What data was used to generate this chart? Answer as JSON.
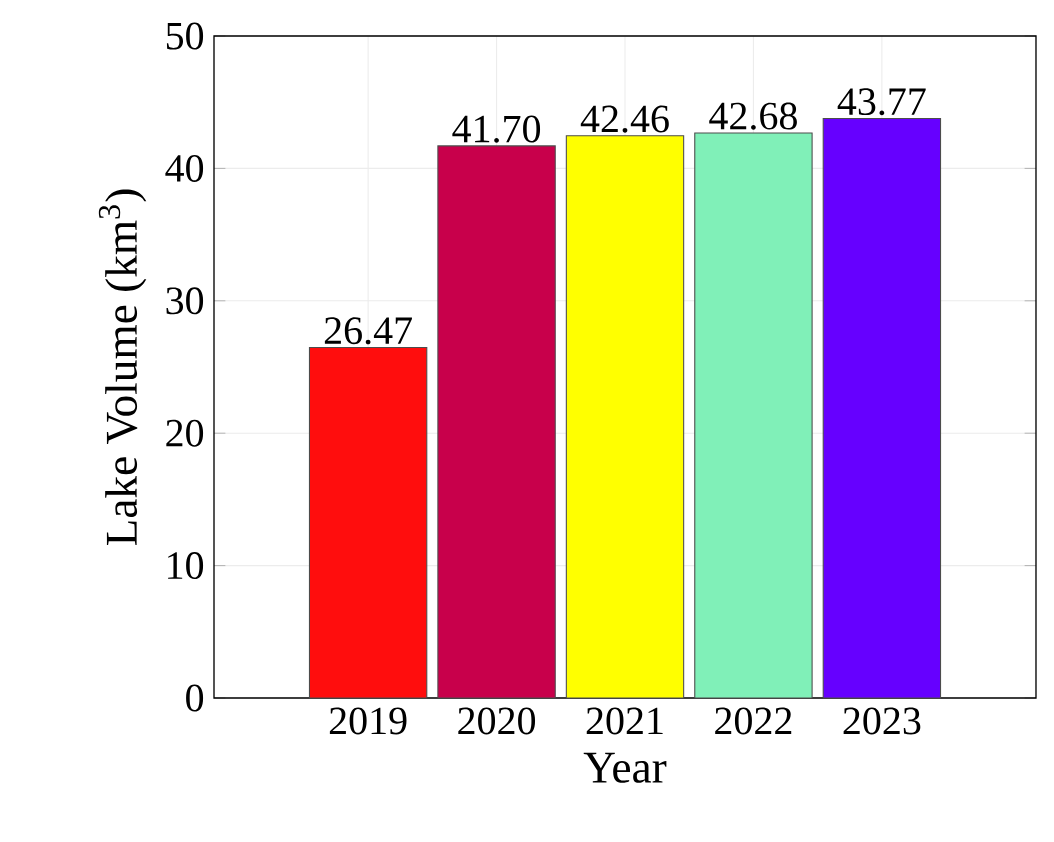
{
  "chart_data": {
    "type": "bar",
    "xlabel": "Year",
    "ylabel": "Lake Volume (km$^{3}$)",
    "categories": [
      "2019",
      "2020",
      "2021",
      "2022",
      "2023"
    ],
    "values": [
      26.47,
      41.7,
      42.46,
      42.68,
      43.77
    ],
    "colors": [
      "#ff0d0d",
      "#c8004b",
      "#ffff00",
      "#80f0b8",
      "#6600ff"
    ],
    "ylim": [
      0,
      50
    ],
    "yticks": [
      0,
      10,
      20,
      30,
      40,
      50
    ],
    "grid": true,
    "value_labels": [
      "26.47",
      "41.70",
      "42.46",
      "42.68",
      "43.77"
    ]
  }
}
